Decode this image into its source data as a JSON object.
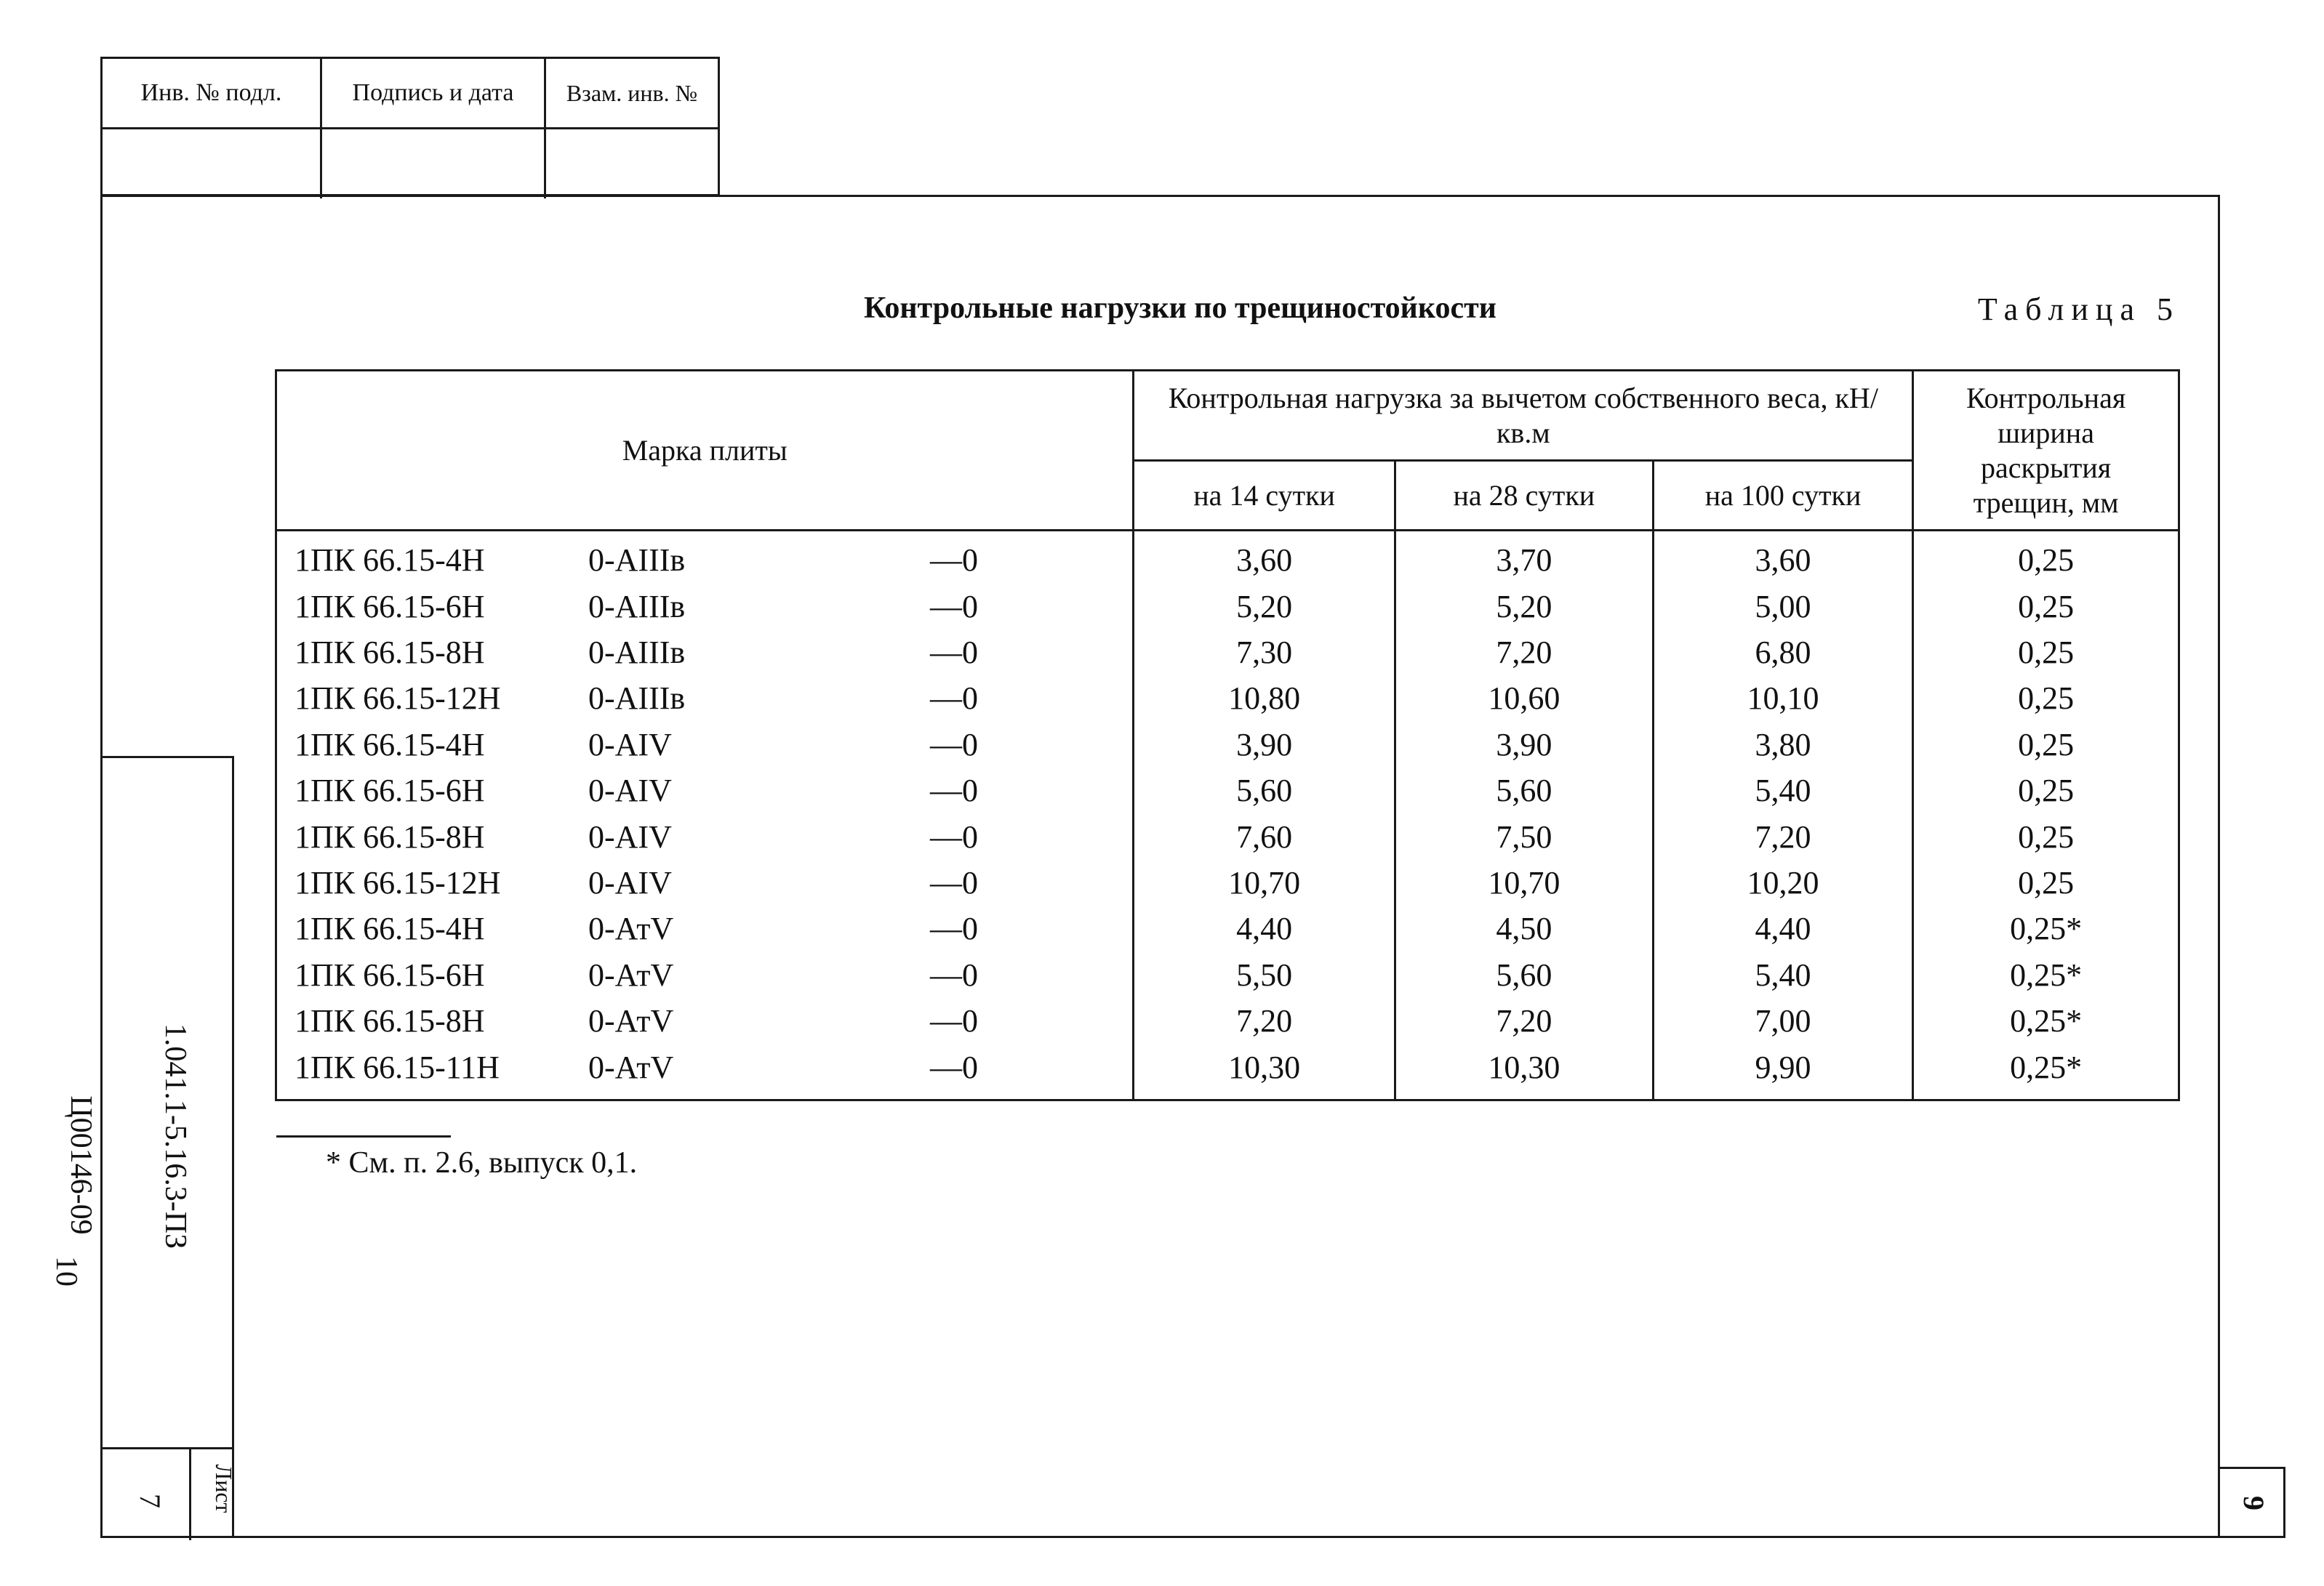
{
  "stamp": {
    "headers": [
      "Инв. № подл.",
      "Подпись и дата",
      "Взам. инв. №"
    ]
  },
  "title": "Контрольные нагрузки по трещиностойкости",
  "table_label": "Таблица 5",
  "table": {
    "header_mark": "Марка плиты",
    "header_load": "Контрольная нагрузка за вычетом собственного веса, кН/кв.м",
    "header_width": "Контрольная ширина раскрытия трещин, мм",
    "sub_14": "на 14 сутки",
    "sub_28": "на 28 сутки",
    "sub_100": "на 100 сутки",
    "rows": [
      {
        "mark": "1ПК 66.15-4Н",
        "steel": "0-АIIIв",
        "suffix": "—0",
        "d14": "3,60",
        "d28": "3,70",
        "d100": "3,60",
        "w": "0,25"
      },
      {
        "mark": "1ПК 66.15-6Н",
        "steel": "0-АIIIв",
        "suffix": "—0",
        "d14": "5,20",
        "d28": "5,20",
        "d100": "5,00",
        "w": "0,25"
      },
      {
        "mark": "1ПК 66.15-8Н",
        "steel": "0-АIIIв",
        "suffix": "—0",
        "d14": "7,30",
        "d28": "7,20",
        "d100": "6,80",
        "w": "0,25"
      },
      {
        "mark": "1ПК 66.15-12Н",
        "steel": "0-АIIIв",
        "suffix": "—0",
        "d14": "10,80",
        "d28": "10,60",
        "d100": "10,10",
        "w": "0,25"
      },
      {
        "mark": "1ПК 66.15-4Н",
        "steel": "0-АIV",
        "suffix": "—0",
        "d14": "3,90",
        "d28": "3,90",
        "d100": "3,80",
        "w": "0,25"
      },
      {
        "mark": "1ПК 66.15-6Н",
        "steel": "0-АIV",
        "suffix": "—0",
        "d14": "5,60",
        "d28": "5,60",
        "d100": "5,40",
        "w": "0,25"
      },
      {
        "mark": "1ПК 66.15-8Н",
        "steel": "0-АIV",
        "suffix": "—0",
        "d14": "7,60",
        "d28": "7,50",
        "d100": "7,20",
        "w": "0,25"
      },
      {
        "mark": "1ПК 66.15-12Н",
        "steel": "0-АIV",
        "suffix": "—0",
        "d14": "10,70",
        "d28": "10,70",
        "d100": "10,20",
        "w": "0,25"
      },
      {
        "mark": "1ПК 66.15-4Н",
        "steel": "0-АтV",
        "suffix": "—0",
        "d14": "4,40",
        "d28": "4,50",
        "d100": "4,40",
        "w": "0,25*"
      },
      {
        "mark": "1ПК 66.15-6Н",
        "steel": "0-АтV",
        "suffix": "—0",
        "d14": "5,50",
        "d28": "5,60",
        "d100": "5,40",
        "w": "0,25*"
      },
      {
        "mark": "1ПК 66.15-8Н",
        "steel": "0-АтV",
        "suffix": "—0",
        "d14": "7,20",
        "d28": "7,20",
        "d100": "7,00",
        "w": "0,25*"
      },
      {
        "mark": "1ПК 66.15-11Н",
        "steel": "0-АтV",
        "suffix": "—0",
        "d14": "10,30",
        "d28": "10,30",
        "d100": "9,90",
        "w": "0,25*"
      }
    ]
  },
  "footnote": "* См. п. 2.6, выпуск 0,1.",
  "side": {
    "doc_code": "1.041.1-5.16.3-ПЗ",
    "archive_code": "Ц00146-09",
    "archive_page": "10",
    "sheet_label": "Лист",
    "sheet_number": "7"
  },
  "page_number": "9"
}
